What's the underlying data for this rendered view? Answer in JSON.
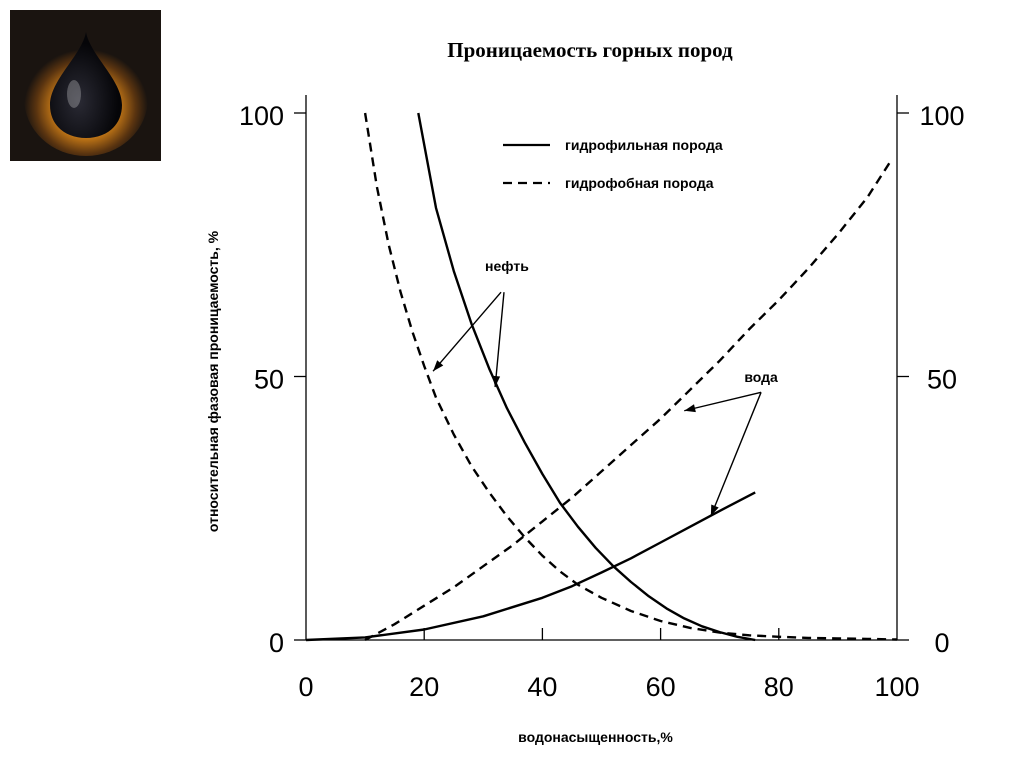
{
  "slide": {
    "title": "Проницаемость горных пород"
  },
  "logo": {
    "icon": "oil-drop-icon",
    "colors": {
      "background": "#1a1410",
      "glow": "#f0a020",
      "drop": "#0c0c10"
    }
  },
  "chart_data": {
    "type": "line",
    "xlabel": "водонасыщенность,%",
    "ylabel": "относительная фазовая  проницаемость, %",
    "xlim": [
      0,
      100
    ],
    "ylim": [
      0,
      100
    ],
    "x_ticks": [
      "0",
      "20",
      "40",
      "60",
      "80",
      "100"
    ],
    "y_ticks_left": [
      "0",
      "50",
      "100"
    ],
    "y_ticks_right": [
      "0",
      "50",
      "100"
    ],
    "grid": false,
    "legend_position": "top-right",
    "series": [
      {
        "name": "гидрофильная порода",
        "phase": "нефть",
        "style": "solid",
        "x": [
          19,
          22,
          25,
          28,
          31,
          34,
          37,
          40,
          43,
          46,
          49,
          52,
          55,
          58,
          61,
          64,
          67,
          70,
          73,
          76
        ],
        "y": [
          100,
          82,
          70,
          60,
          51.5,
          44,
          37.5,
          31.5,
          26,
          21.5,
          17.5,
          14,
          11,
          8.3,
          6,
          4.1,
          2.6,
          1.5,
          0.6,
          0
        ]
      },
      {
        "name": "гидрофильная порода",
        "phase": "вода",
        "style": "solid",
        "x": [
          0,
          10,
          20,
          30,
          40,
          45,
          50,
          55,
          60,
          65,
          70,
          76
        ],
        "y": [
          0,
          0.5,
          2,
          4.5,
          8,
          10.2,
          12.8,
          15.5,
          18.5,
          21.5,
          24.5,
          28
        ]
      },
      {
        "name": "гидрофобная порода",
        "phase": "нефть",
        "style": "dashed",
        "x": [
          10,
          12,
          14,
          16,
          18,
          20,
          22,
          25,
          28,
          31,
          34,
          37,
          40,
          43,
          46,
          50,
          55,
          60,
          65,
          70,
          75,
          80,
          85,
          90,
          95,
          100
        ],
        "y": [
          100,
          86,
          75,
          66,
          58.5,
          52,
          46,
          39,
          33,
          28,
          23.5,
          19.5,
          16,
          13,
          10.5,
          8,
          5.5,
          3.6,
          2.3,
          1.4,
          0.9,
          0.6,
          0.4,
          0.3,
          0.2,
          0.1
        ]
      },
      {
        "name": "гидрофобная порода",
        "phase": "вода",
        "style": "dashed",
        "x": [
          10,
          15,
          20,
          25,
          30,
          35,
          40,
          45,
          50,
          55,
          60,
          65,
          70,
          75,
          80,
          85,
          90,
          95,
          99
        ],
        "y": [
          0,
          3,
          6.5,
          10,
          14,
          18,
          22.5,
          27,
          32,
          37,
          42,
          47.5,
          53,
          59,
          64.5,
          70.5,
          77,
          84,
          91
        ]
      }
    ],
    "annotations": [
      {
        "text": "нефть",
        "x": 34,
        "y": 70
      },
      {
        "text": "вода",
        "x": 77,
        "y": 49
      }
    ],
    "arrows": [
      {
        "from": [
          33,
          66
        ],
        "to": [
          21.5,
          51
        ]
      },
      {
        "from": [
          33.5,
          66
        ],
        "to": [
          32,
          48
        ]
      },
      {
        "from": [
          77,
          47
        ],
        "to": [
          64,
          43.5
        ]
      },
      {
        "from": [
          77,
          47
        ],
        "to": [
          68.5,
          23.5
        ]
      }
    ]
  }
}
